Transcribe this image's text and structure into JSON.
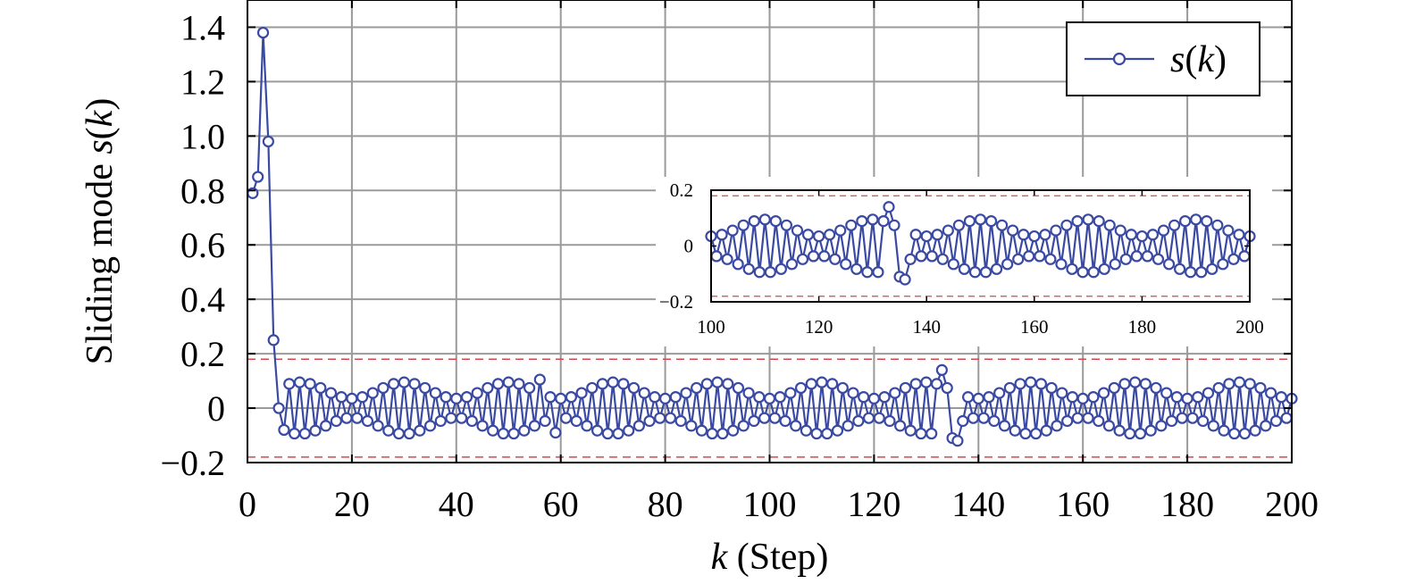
{
  "chart_data": {
    "type": "line",
    "xlabel": "k (Step)",
    "ylabel": "Sliding mode s(k)",
    "xlim": [
      0,
      200
    ],
    "ylim": [
      -0.2,
      1.5
    ],
    "xticks": [
      0,
      20,
      40,
      60,
      80,
      100,
      120,
      140,
      160,
      180,
      200
    ],
    "yticks": [
      -0.2,
      0,
      0.2,
      0.4,
      0.6,
      0.8,
      1.0,
      1.2,
      1.4
    ],
    "xtick_labels": [
      "0",
      "20",
      "40",
      "60",
      "80",
      "100",
      "120",
      "140",
      "160",
      "180",
      "200"
    ],
    "ytick_labels": [
      "−0.2",
      "0",
      "0.2",
      "0.4",
      "0.6",
      "0.8",
      "1.0",
      "1.2",
      "1.4"
    ],
    "grid": true,
    "legend_position": "top-right",
    "bound_lines": [
      0.18,
      -0.18
    ],
    "initial_points": [
      [
        1,
        0.79
      ],
      [
        2,
        0.85
      ],
      [
        3,
        1.38
      ],
      [
        4,
        0.98
      ],
      [
        5,
        0.25
      ],
      [
        6,
        0.0
      ],
      [
        7,
        -0.08
      ]
    ],
    "steady_state": {
      "x_start": 8,
      "x_end": 200,
      "envelope_amplitude": 0.03,
      "envelope_offset": 0.065,
      "envelope_period": 20,
      "envelope_peak_x": 10,
      "spikes": [
        [
          56,
          0.105
        ],
        [
          59,
          -0.09
        ],
        [
          133,
          0.14
        ],
        [
          135,
          -0.11
        ],
        [
          136,
          -0.12
        ]
      ]
    },
    "series": [
      {
        "name": "s(k)",
        "color": "#3a4aa3",
        "marker": "circle"
      }
    ],
    "inset": {
      "xlim": [
        100,
        200
      ],
      "ylim": [
        -0.2,
        0.2
      ],
      "xticks": [
        100,
        120,
        140,
        160,
        180,
        200
      ],
      "yticks": [
        -0.2,
        0,
        0.2
      ],
      "xtick_labels": [
        "100",
        "120",
        "140",
        "160",
        "180",
        "200"
      ],
      "ytick_labels": [
        "−0.2",
        "0",
        "0.2"
      ],
      "bound_lines": [
        0.18,
        -0.18
      ]
    }
  },
  "legend": {
    "label": "s(k)"
  }
}
